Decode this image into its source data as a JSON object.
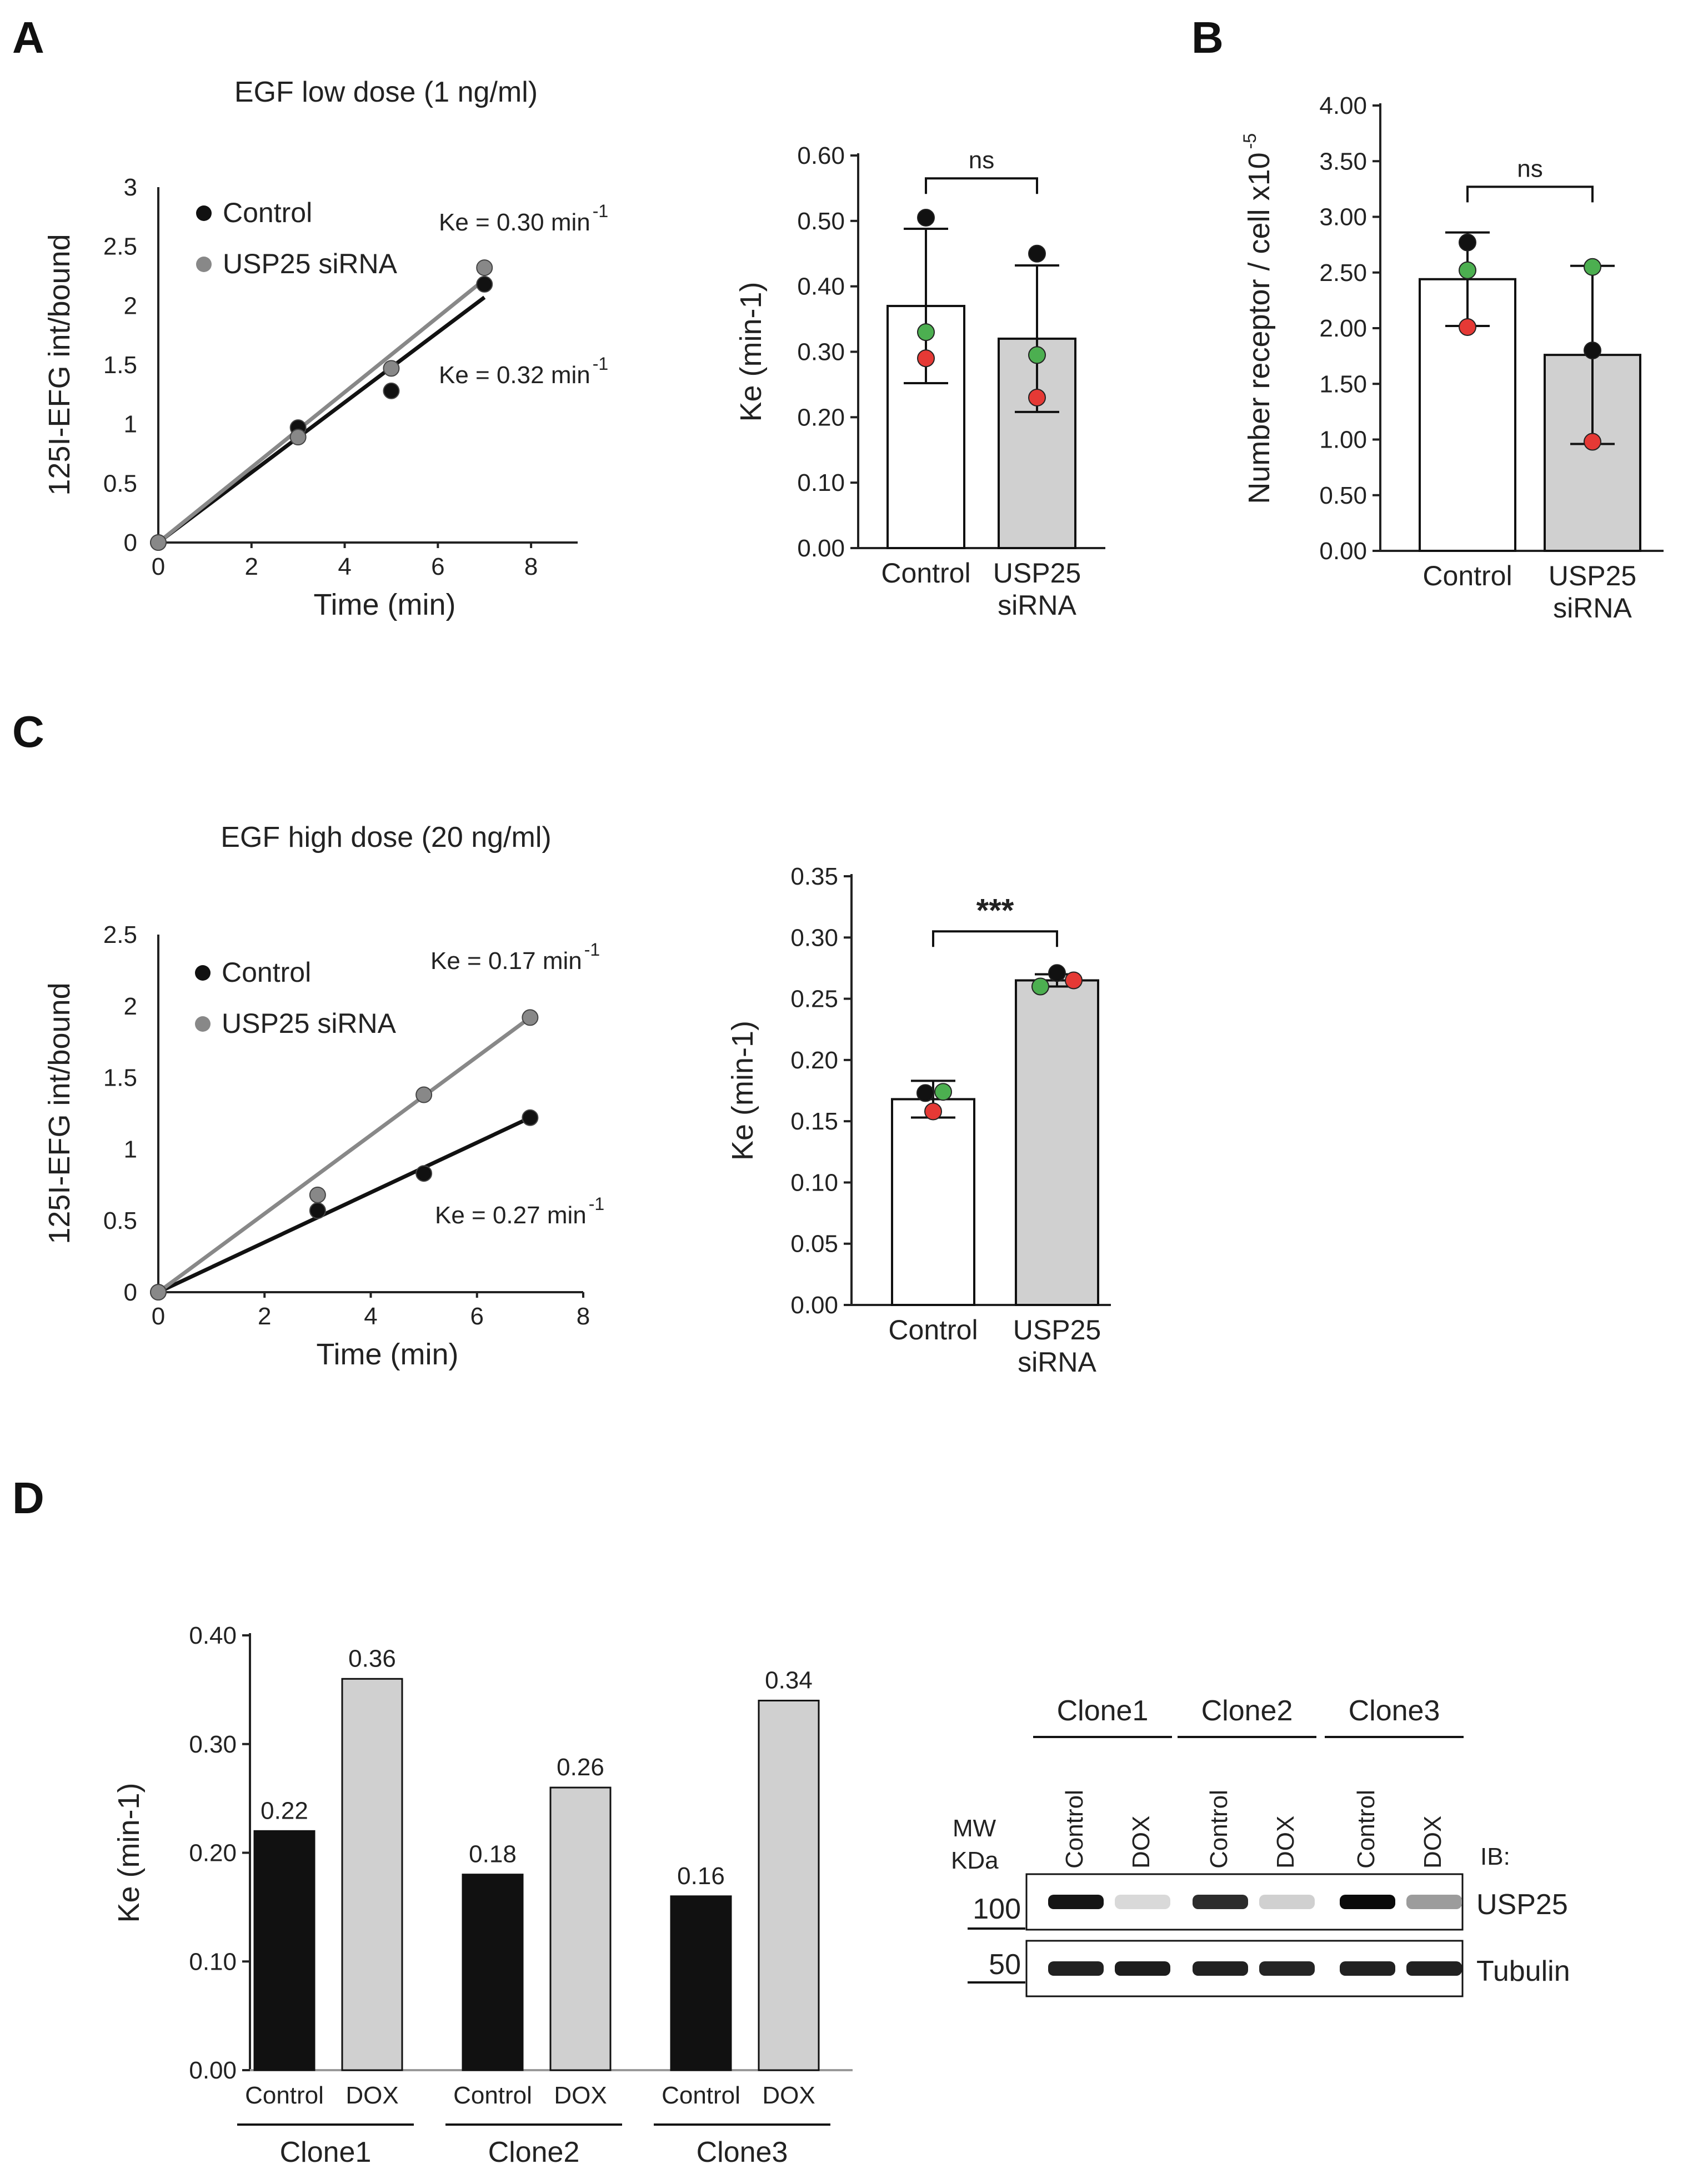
{
  "panels": {
    "A": "A",
    "B": "B",
    "C": "C",
    "D": "D"
  },
  "colors": {
    "black": "#111111",
    "gray": "#888888",
    "light_gray": "#d0d0d0",
    "green": "#4caf50",
    "red": "#e53935"
  },
  "chart_data": [
    {
      "id": "A_left",
      "type": "scatter",
      "title": "EGF low dose (1 ng/ml)",
      "xlabel": "Time (min)",
      "ylabel": "125I-EFG int/bound",
      "xlim": [
        0,
        9
      ],
      "ylim": [
        0,
        3
      ],
      "xticks": [
        "0",
        "2",
        "4",
        "6",
        "8"
      ],
      "yticks": [
        "0",
        "0.5",
        "1",
        "1.5",
        "2",
        "2.5",
        "3"
      ],
      "series": [
        {
          "name": "Control",
          "color": "#111111",
          "points": [
            [
              0,
              0
            ],
            [
              3,
              0.97
            ],
            [
              5,
              1.28
            ],
            [
              7,
              2.18
            ]
          ],
          "fit": [
            [
              0,
              0
            ],
            [
              7,
              2.07
            ]
          ],
          "ke_text": "Ke = 0.30 min",
          "ke_sup": "-1"
        },
        {
          "name": "USP25 siRNA",
          "color": "#888888",
          "points": [
            [
              0,
              0
            ],
            [
              3,
              0.89
            ],
            [
              5,
              1.47
            ],
            [
              7,
              2.32
            ]
          ],
          "fit": [
            [
              0,
              0
            ],
            [
              7,
              2.22
            ]
          ],
          "ke_text": "Ke = 0.32 min",
          "ke_sup": "-1"
        }
      ]
    },
    {
      "id": "A_right",
      "type": "bar",
      "ylabel": "Ke (min-1)",
      "ylim": [
        0,
        0.6
      ],
      "yticks": [
        "0.00",
        "0.10",
        "0.20",
        "0.30",
        "0.40",
        "0.50",
        "0.60"
      ],
      "categories": [
        "Control",
        "USP25|siRNA"
      ],
      "values": [
        0.37,
        0.32
      ],
      "errors": [
        0.118,
        0.112
      ],
      "fills": [
        "#ffffff",
        "#d0d0d0"
      ],
      "points": [
        [
          {
            "v": 0.505,
            "c": "#111111"
          },
          {
            "v": 0.33,
            "c": "#4caf50"
          },
          {
            "v": 0.29,
            "c": "#e53935"
          }
        ],
        [
          {
            "v": 0.45,
            "c": "#111111"
          },
          {
            "v": 0.295,
            "c": "#4caf50"
          },
          {
            "v": 0.23,
            "c": "#e53935"
          }
        ]
      ],
      "significance": "ns",
      "sig_level": 0.565
    },
    {
      "id": "B",
      "type": "bar",
      "ylabel": "Number receptor / cell x10",
      "ylabel_sup": "-5",
      "ylim": [
        0,
        4
      ],
      "yticks": [
        "0.00",
        "0.50",
        "1.00",
        "1.50",
        "2.00",
        "2.50",
        "3.00",
        "3.50",
        "4.00"
      ],
      "categories": [
        "Control",
        "USP25|siRNA"
      ],
      "values": [
        2.44,
        1.76
      ],
      "errors": [
        0.42,
        0.8
      ],
      "fills": [
        "#ffffff",
        "#d0d0d0"
      ],
      "points": [
        [
          {
            "v": 2.77,
            "c": "#111111"
          },
          {
            "v": 2.52,
            "c": "#4caf50"
          },
          {
            "v": 2.01,
            "c": "#e53935"
          }
        ],
        [
          {
            "v": 1.8,
            "c": "#111111"
          },
          {
            "v": 2.55,
            "c": "#4caf50"
          },
          {
            "v": 0.98,
            "c": "#e53935"
          }
        ]
      ],
      "significance": "ns",
      "sig_level": 3.27
    },
    {
      "id": "C_left",
      "type": "scatter",
      "title": "EGF high dose (20 ng/ml)",
      "xlabel": "Time (min)",
      "ylabel": "125I-EFG int/bound",
      "xlim": [
        0,
        8
      ],
      "ylim": [
        0,
        2.5
      ],
      "xticks": [
        "0",
        "2",
        "4",
        "6",
        "8"
      ],
      "yticks": [
        "0",
        "0.5",
        "1",
        "1.5",
        "2",
        "2.5"
      ],
      "series": [
        {
          "name": "Control",
          "color": "#111111",
          "points": [
            [
              0,
              0
            ],
            [
              3,
              0.57
            ],
            [
              5,
              0.83
            ],
            [
              7,
              1.22
            ]
          ],
          "fit": [
            [
              0,
              0
            ],
            [
              7,
              1.22
            ]
          ],
          "ke_text": "Ke = 0.17 min",
          "ke_sup": "-1"
        },
        {
          "name": "USP25 siRNA",
          "color": "#888888",
          "points": [
            [
              0,
              0
            ],
            [
              3,
              0.68
            ],
            [
              5,
              1.38
            ],
            [
              7,
              1.92
            ]
          ],
          "fit": [
            [
              0,
              0
            ],
            [
              7,
              1.92
            ]
          ],
          "ke_text": "Ke = 0.27 min",
          "ke_sup": "-1"
        }
      ]
    },
    {
      "id": "C_right",
      "type": "bar",
      "ylabel": "Ke (min-1)",
      "ylim": [
        0,
        0.35
      ],
      "yticks": [
        "0.00",
        "0.05",
        "0.10",
        "0.15",
        "0.20",
        "0.25",
        "0.30",
        "0.35"
      ],
      "categories": [
        "Control",
        "USP25|siRNA"
      ],
      "values": [
        0.168,
        0.265
      ],
      "errors": [
        0.015,
        0.005
      ],
      "fills": [
        "#ffffff",
        "#d0d0d0"
      ],
      "points": [
        [
          {
            "v": 0.173,
            "c": "#111111",
            "dx": -14
          },
          {
            "v": 0.174,
            "c": "#4caf50",
            "dx": 18
          },
          {
            "v": 0.158,
            "c": "#e53935",
            "dx": 0
          }
        ],
        [
          {
            "v": 0.271,
            "c": "#111111",
            "dx": 0
          },
          {
            "v": 0.26,
            "c": "#4caf50",
            "dx": -30
          },
          {
            "v": 0.265,
            "c": "#e53935",
            "dx": 30
          }
        ]
      ],
      "significance": "***",
      "sig_level": 0.305
    },
    {
      "id": "D",
      "type": "bar",
      "ylabel": "Ke (min-1)",
      "ylim": [
        0,
        0.4
      ],
      "yticks": [
        "0.00",
        "0.10",
        "0.20",
        "0.30",
        "0.40"
      ],
      "categories": [
        "Control",
        "DOX",
        "Control",
        "DOX",
        "Control",
        "DOX"
      ],
      "groups": [
        "Clone1",
        "Clone2",
        "Clone3"
      ],
      "values": [
        0.22,
        0.36,
        0.18,
        0.26,
        0.16,
        0.34
      ],
      "value_labels": [
        "0.22",
        "0.36",
        "0.18",
        "0.26",
        "0.16",
        "0.34"
      ],
      "fills": [
        "#111111",
        "#d0d0d0",
        "#111111",
        "#d0d0d0",
        "#111111",
        "#d0d0d0"
      ]
    }
  ],
  "blot": {
    "clones": [
      "Clone1",
      "Clone2",
      "Clone3"
    ],
    "lanes": [
      "Control",
      "DOX",
      "Control",
      "DOX",
      "Control",
      "DOX"
    ],
    "mw_label": "MW",
    "kda_label": "KDa",
    "ib_label": "IB:",
    "rows": [
      {
        "mw": "100",
        "protein": "USP25",
        "intensity": [
          0.95,
          0.08,
          0.85,
          0.12,
          1.0,
          0.35
        ]
      },
      {
        "mw": "50",
        "protein": "Tubulin",
        "intensity": [
          0.9,
          0.92,
          0.9,
          0.88,
          0.9,
          0.9
        ]
      }
    ]
  }
}
